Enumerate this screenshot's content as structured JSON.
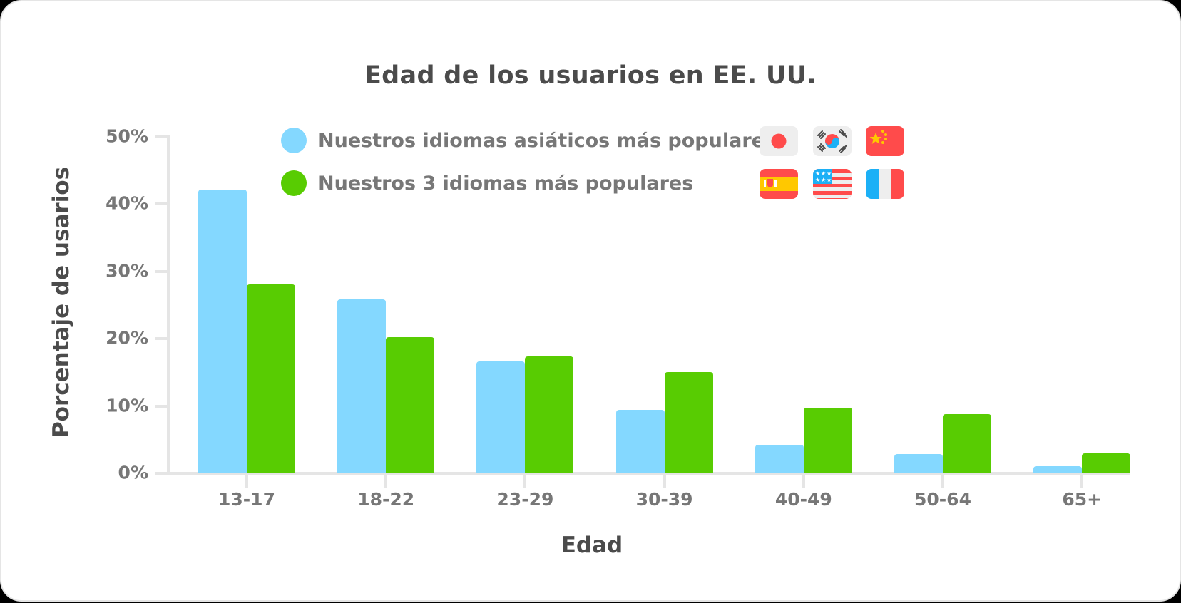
{
  "chart_data": {
    "type": "bar",
    "title": "Edad de los usuarios en EE. UU.",
    "xlabel": "Edad",
    "ylabel": "Porcentaje de usarios",
    "categories": [
      "13-17",
      "18-22",
      "23-29",
      "30-39",
      "40-49",
      "50-64",
      "65+"
    ],
    "series": [
      {
        "name": "Nuestros idiomas asiáticos más populares",
        "color": "#84d8ff",
        "values": [
          42.0,
          25.7,
          16.5,
          9.3,
          4.1,
          2.8,
          1.0
        ]
      },
      {
        "name": "Nuestros 3 idiomas más populares",
        "color": "#58cc02",
        "values": [
          27.9,
          20.1,
          17.2,
          14.9,
          9.6,
          8.7,
          2.9
        ]
      }
    ],
    "ylim": [
      0,
      50
    ],
    "yticks": [
      "0%",
      "10%",
      "20%",
      "30%",
      "40%",
      "50%"
    ],
    "grid": false,
    "legend_position": "top-center"
  },
  "title": "Edad de los usuarios en EE. UU.",
  "axes": {
    "x_title": "Edad",
    "y_title": "Porcentaje de usarios",
    "y_ticks": [
      "0%",
      "10%",
      "20%",
      "30%",
      "40%",
      "50%"
    ],
    "x_ticks": [
      "13-17",
      "18-22",
      "23-29",
      "30-39",
      "40-49",
      "50-64",
      "65+"
    ]
  },
  "legend": {
    "items": [
      {
        "label": "Nuestros idiomas asiáticos más populares",
        "color": "#84d8ff",
        "flags": [
          "japan-flag",
          "south-korea-flag",
          "china-flag"
        ]
      },
      {
        "label": "Nuestros 3 idiomas más populares",
        "color": "#58cc02",
        "flags": [
          "spain-flag",
          "usa-flag",
          "france-flag"
        ]
      }
    ]
  },
  "colors": {
    "asian": "#84d8ff",
    "top3": "#58cc02",
    "axis": "#e5e5e5",
    "text_dark": "#4b4b4b",
    "text_muted": "#777777"
  }
}
